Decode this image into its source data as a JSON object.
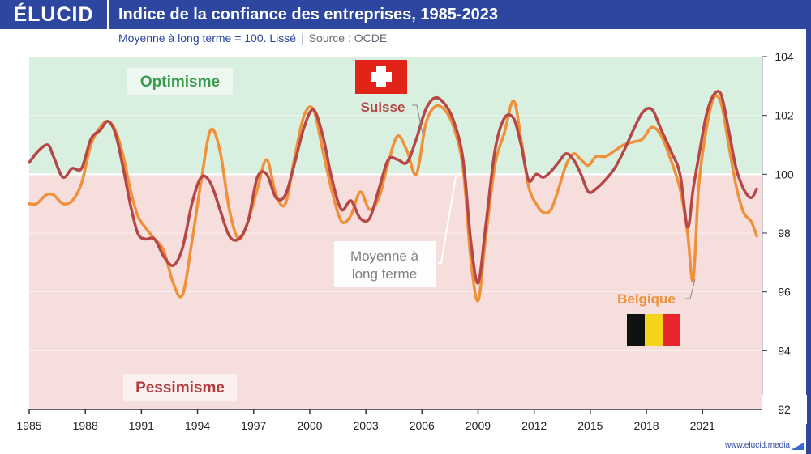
{
  "header": {
    "brand": "ÉLUCID",
    "title": "Indice de la confiance des entreprises, 1985-2023",
    "subtitle": "Moyenne à long terme = 100. Lissé",
    "source": "Source : OCDE",
    "site": "www.elucid.media"
  },
  "colors": {
    "header_bg": "#2d47a0",
    "optimism_zone": "#d9efdf",
    "pessimism_zone": "#f6dedd",
    "belgium": "#f0913a",
    "switzerland": "#b54747",
    "optimism_text": "#3a9b4a",
    "pessimism_text": "#b33a3a"
  },
  "icons": {
    "switzerland": "swiss-flag-icon",
    "belgium": "belgian-flag-icon"
  },
  "chart_data": {
    "type": "line",
    "title": "Indice de la confiance des entreprises, 1985-2023",
    "subtitle": "Moyenne à long terme = 100. Lissé",
    "xlabel": "",
    "ylabel": "",
    "xlim": [
      1985,
      2024.2
    ],
    "ylim": [
      92,
      104
    ],
    "x_ticks": [
      1985,
      1988,
      1991,
      1994,
      1997,
      2000,
      2003,
      2006,
      2009,
      2012,
      2015,
      2018,
      2021
    ],
    "y_ticks": [
      92,
      94,
      96,
      98,
      100,
      102,
      104
    ],
    "grid": true,
    "baseline": 100,
    "zones": {
      "above": "Optimisme",
      "below": "Pessimisme"
    },
    "annotation": "Moyenne à long terme",
    "series": [
      {
        "name": "Suisse",
        "x": [
          1985.0,
          1985.5,
          1986.0,
          1986.3,
          1986.8,
          1987.3,
          1987.8,
          1988.3,
          1988.8,
          1989.2,
          1989.6,
          1990.0,
          1990.4,
          1990.8,
          1991.2,
          1991.7,
          1992.2,
          1992.7,
          1993.2,
          1993.7,
          1994.2,
          1994.7,
          1995.2,
          1995.7,
          1996.2,
          1996.7,
          1997.2,
          1997.7,
          1998.2,
          1998.7,
          1999.2,
          1999.7,
          2000.2,
          2000.7,
          2001.2,
          2001.7,
          2002.2,
          2002.7,
          2003.2,
          2003.7,
          2004.2,
          2004.7,
          2005.2,
          2005.7,
          2006.2,
          2006.7,
          2007.2,
          2007.7,
          2008.2,
          2008.6,
          2009.0,
          2009.4,
          2009.9,
          2010.4,
          2010.9,
          2011.3,
          2011.7,
          2012.1,
          2012.5,
          2012.9,
          2013.3,
          2013.7,
          2014.1,
          2014.5,
          2014.9,
          2015.3,
          2015.8,
          2016.3,
          2016.8,
          2017.3,
          2017.8,
          2018.3,
          2018.8,
          2019.3,
          2019.8,
          2020.2,
          2020.5,
          2020.8,
          2021.2,
          2021.6,
          2022.0,
          2022.4,
          2022.8,
          2023.2,
          2023.6,
          2023.9
        ],
        "values": [
          100.4,
          100.8,
          101.0,
          100.6,
          99.9,
          100.2,
          100.2,
          101.2,
          101.5,
          101.8,
          101.4,
          100.3,
          99.0,
          98.0,
          97.8,
          97.8,
          97.2,
          96.9,
          97.5,
          99.0,
          99.9,
          99.7,
          98.8,
          97.9,
          97.8,
          98.4,
          99.9,
          100.0,
          99.2,
          99.3,
          100.4,
          101.6,
          102.2,
          101.3,
          99.8,
          98.8,
          99.1,
          98.5,
          98.5,
          99.5,
          100.5,
          100.5,
          100.4,
          101.2,
          102.2,
          102.6,
          102.4,
          101.8,
          100.5,
          97.8,
          96.3,
          98.2,
          100.8,
          101.9,
          101.9,
          101.0,
          99.8,
          100.0,
          99.9,
          100.1,
          100.4,
          100.7,
          100.5,
          100.0,
          99.4,
          99.5,
          99.8,
          100.2,
          100.8,
          101.5,
          102.1,
          102.2,
          101.5,
          100.8,
          100.0,
          98.2,
          99.5,
          100.6,
          102.0,
          102.7,
          102.7,
          101.5,
          100.2,
          99.5,
          99.2,
          99.5
        ],
        "color": "#b54747"
      },
      {
        "name": "Belgique",
        "x": [
          1985.0,
          1985.4,
          1985.9,
          1986.3,
          1986.8,
          1987.3,
          1987.8,
          1988.3,
          1988.8,
          1989.2,
          1989.6,
          1990.0,
          1990.4,
          1990.8,
          1991.2,
          1991.7,
          1992.2,
          1992.7,
          1993.2,
          1993.7,
          1994.2,
          1994.7,
          1995.2,
          1995.7,
          1996.2,
          1996.7,
          1997.2,
          1997.7,
          1998.2,
          1998.7,
          1999.2,
          1999.7,
          2000.2,
          2000.7,
          2001.2,
          2001.7,
          2002.2,
          2002.7,
          2003.2,
          2003.7,
          2004.2,
          2004.7,
          2005.2,
          2005.7,
          2006.2,
          2006.7,
          2007.2,
          2007.7,
          2008.2,
          2008.6,
          2009.0,
          2009.4,
          2009.9,
          2010.4,
          2010.9,
          2011.3,
          2011.7,
          2012.1,
          2012.5,
          2012.9,
          2013.3,
          2013.7,
          2014.1,
          2014.5,
          2014.9,
          2015.3,
          2015.8,
          2016.3,
          2016.8,
          2017.3,
          2017.8,
          2018.3,
          2018.8,
          2019.3,
          2019.8,
          2020.2,
          2020.5,
          2020.8,
          2021.2,
          2021.6,
          2022.0,
          2022.4,
          2022.8,
          2023.2,
          2023.6,
          2023.9
        ],
        "values": [
          99.0,
          99.0,
          99.3,
          99.3,
          99.0,
          99.1,
          99.7,
          101.0,
          101.6,
          101.8,
          101.5,
          100.7,
          99.5,
          98.6,
          98.2,
          97.8,
          97.4,
          96.3,
          95.9,
          97.7,
          99.8,
          101.5,
          100.8,
          98.8,
          97.8,
          98.4,
          99.5,
          100.5,
          99.3,
          99.0,
          100.6,
          102.0,
          102.2,
          100.8,
          99.4,
          98.4,
          98.6,
          99.4,
          98.8,
          99.2,
          100.4,
          101.3,
          100.8,
          100.0,
          101.7,
          102.3,
          102.2,
          101.6,
          100.2,
          97.2,
          95.7,
          97.8,
          100.3,
          101.4,
          102.5,
          101.2,
          99.6,
          99.0,
          98.7,
          98.8,
          99.5,
          100.3,
          100.7,
          100.5,
          100.3,
          100.6,
          100.6,
          100.8,
          101.0,
          101.1,
          101.2,
          101.6,
          101.3,
          100.5,
          99.5,
          98.0,
          96.4,
          99.6,
          101.5,
          102.6,
          102.4,
          101.0,
          99.6,
          98.7,
          98.4,
          97.9
        ],
        "color": "#f0913a"
      }
    ]
  }
}
